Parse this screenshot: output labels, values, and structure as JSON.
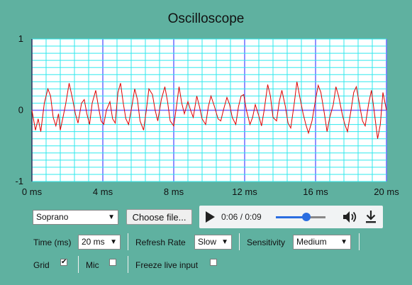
{
  "title": "Oscilloscope",
  "axes": {
    "y_labels": [
      "1",
      "0",
      "-1"
    ],
    "x_labels": [
      "0 ms",
      "4 ms",
      "8 ms",
      "12 ms",
      "16 ms",
      "20 ms"
    ]
  },
  "controls": {
    "instrument": "Soprano",
    "choose_file": "Choose file...",
    "player": {
      "time": "0:06 / 0:09",
      "progress": 0.62
    },
    "time_label": "Time (ms)",
    "time_value": "20 ms",
    "refresh_label": "Refresh Rate",
    "refresh_value": "Slow",
    "sensitivity_label": "Sensitivity",
    "sensitivity_value": "Medium",
    "grid_label": "Grid",
    "grid_checked": true,
    "mic_label": "Mic",
    "mic_checked": false,
    "freeze_label": "Freeze live input",
    "freeze_checked": false
  },
  "colors": {
    "background": "#5fb1a0",
    "grid_minor": "#31e8ee",
    "grid_major": "#6b6bff",
    "trace": "#e00000"
  },
  "chart_data": {
    "type": "line",
    "title": "Oscilloscope",
    "xlabel": "",
    "ylabel": "",
    "x_unit": "ms",
    "xlim": [
      0,
      20
    ],
    "ylim": [
      -1,
      1
    ],
    "x_ticks": [
      0,
      4,
      8,
      12,
      16,
      20
    ],
    "y_ticks": [
      1,
      0,
      -1
    ],
    "grid": true,
    "series": [
      {
        "x": [
          0.0,
          0.2,
          0.35,
          0.5,
          0.7,
          0.9,
          1.05,
          1.2,
          1.35,
          1.5,
          1.6,
          1.75,
          1.9,
          2.1,
          2.3,
          2.45,
          2.6,
          2.8,
          2.95,
          3.1,
          3.25,
          3.4,
          3.6,
          3.75,
          3.9,
          4.05,
          4.2,
          4.4,
          4.55,
          4.7,
          4.85,
          5.0,
          5.15,
          5.3,
          5.45,
          5.6,
          5.8,
          5.95,
          6.1,
          6.3,
          6.45,
          6.6,
          6.8,
          6.95,
          7.1,
          7.3,
          7.5,
          7.65,
          7.8,
          8.0,
          8.15,
          8.3,
          8.45,
          8.6,
          8.8,
          8.95,
          9.1,
          9.3,
          9.45,
          9.6,
          9.8,
          9.95,
          10.1,
          10.3,
          10.5,
          10.65,
          10.8,
          11.0,
          11.15,
          11.3,
          11.5,
          11.65,
          11.8,
          11.95,
          12.1,
          12.3,
          12.45,
          12.6,
          12.8,
          12.95,
          13.1,
          13.3,
          13.45,
          13.6,
          13.8,
          13.95,
          14.1,
          14.3,
          14.45,
          14.6,
          14.8,
          14.95,
          15.1,
          15.3,
          15.45,
          15.6,
          15.8,
          16.0,
          16.15,
          16.3,
          16.5,
          16.65,
          16.8,
          17.0,
          17.15,
          17.3,
          17.5,
          17.65,
          17.8,
          18.0,
          18.15,
          18.3,
          18.5,
          18.65,
          18.8,
          19.0,
          19.15,
          19.3,
          19.5,
          19.65,
          19.8,
          20.0
        ],
        "y": [
          0.0,
          -0.28,
          -0.12,
          -0.3,
          0.1,
          0.3,
          0.2,
          -0.1,
          -0.22,
          -0.05,
          -0.28,
          -0.1,
          0.08,
          0.38,
          0.15,
          -0.05,
          -0.18,
          0.1,
          0.15,
          -0.05,
          -0.2,
          0.1,
          0.28,
          0.05,
          -0.15,
          -0.2,
          0.0,
          0.12,
          -0.12,
          -0.18,
          0.25,
          0.38,
          0.1,
          -0.12,
          -0.2,
          0.0,
          0.3,
          0.15,
          -0.15,
          -0.28,
          0.0,
          0.3,
          0.22,
          0.0,
          -0.15,
          0.15,
          0.33,
          0.12,
          -0.15,
          -0.22,
          0.05,
          0.33,
          0.1,
          -0.05,
          0.12,
          0.0,
          -0.1,
          0.2,
          0.05,
          -0.12,
          -0.2,
          0.05,
          0.2,
          0.05,
          -0.12,
          -0.15,
          0.0,
          0.18,
          0.08,
          -0.1,
          -0.2,
          0.05,
          0.2,
          0.22,
          0.0,
          -0.2,
          -0.1,
          0.08,
          -0.08,
          -0.22,
          0.0,
          0.36,
          0.2,
          -0.1,
          -0.15,
          0.12,
          0.28,
          0.05,
          -0.18,
          -0.25,
          0.1,
          0.4,
          0.2,
          -0.05,
          -0.2,
          -0.32,
          -0.15,
          0.15,
          0.35,
          0.25,
          -0.05,
          -0.3,
          -0.1,
          0.08,
          0.33,
          0.2,
          -0.05,
          -0.2,
          -0.3,
          0.0,
          0.25,
          0.33,
          0.05,
          -0.15,
          -0.22,
          0.1,
          0.28,
          0.0,
          -0.4,
          -0.2,
          0.25,
          0.0
        ]
      }
    ]
  }
}
